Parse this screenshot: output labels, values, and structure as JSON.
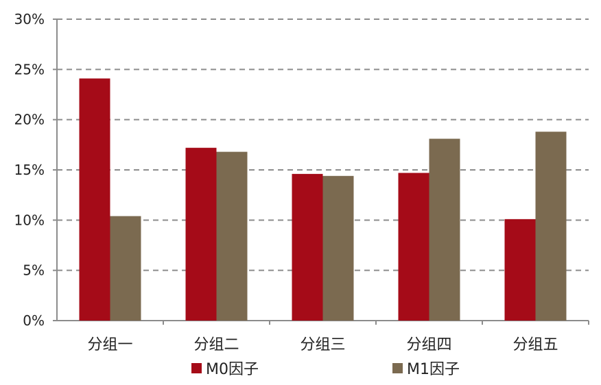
{
  "chart_data": {
    "type": "bar",
    "categories": [
      "分组一",
      "分组二",
      "分组三",
      "分组四",
      "分组五"
    ],
    "series": [
      {
        "name": "M0因子",
        "color": "#A50B18",
        "values": [
          24.1,
          17.2,
          14.6,
          14.7,
          10.1
        ]
      },
      {
        "name": "M1因子",
        "color": "#7B6A50",
        "values": [
          10.4,
          16.8,
          14.4,
          18.1,
          18.8
        ]
      }
    ],
    "y_ticks": [
      "0%",
      "5%",
      "10%",
      "15%",
      "20%",
      "25%",
      "30%"
    ],
    "ylim": [
      0,
      30
    ],
    "y_unit": "%",
    "grid": "dashed horizontal",
    "legend_position": "bottom-center",
    "title": "",
    "xlabel": "",
    "ylabel": ""
  }
}
